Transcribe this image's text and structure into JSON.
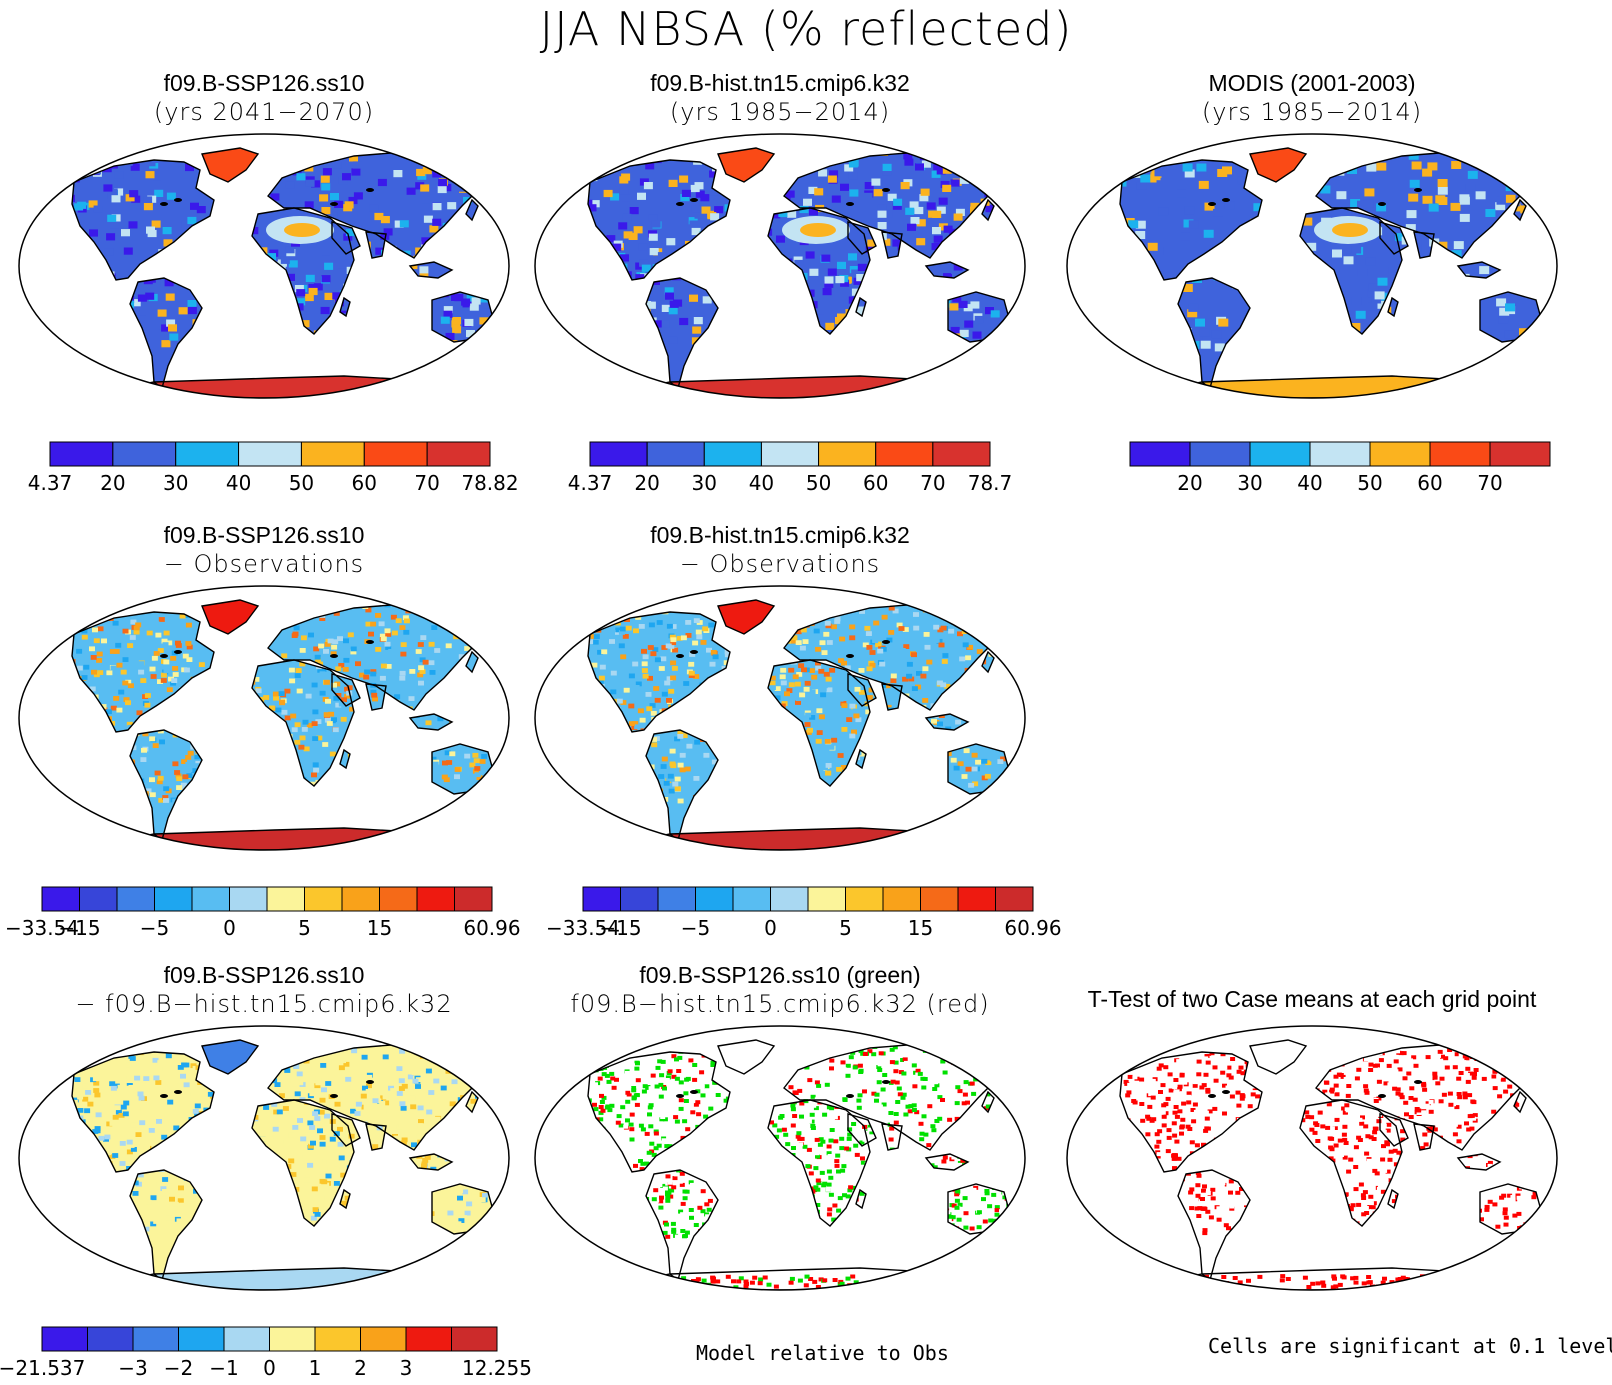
{
  "title": "JJA NBSA (% reflected)",
  "colors": {
    "abs": [
      "#3a19ea",
      "#3f63dc",
      "#1cb2ee",
      "#c3e4f3",
      "#fbb31f",
      "#fa4a16",
      "#d8322e"
    ],
    "diff10": [
      "#3a19ea",
      "#3745d9",
      "#3f80e6",
      "#1ea6f0",
      "#58bdf2",
      "#a9d8f2",
      "#fbf49a",
      "#fbc62c",
      "#f9a21a",
      "#f56a18",
      "#ee1a10",
      "#cc2b2b"
    ],
    "diff_ss": [
      "#3a19ea",
      "#3745d9",
      "#3f80e6",
      "#1ea6f0",
      "#a9d8f2",
      "#fbf49a",
      "#fbc62c",
      "#f9a21a",
      "#ee1a10",
      "#cc2b2b"
    ],
    "sig_green": "#00e000",
    "sig_red": "#ff0000"
  },
  "panels": [
    {
      "id": "p1",
      "title": "f09.B-SSP126.ss10",
      "subtitle": "(yrs 2041−2070)",
      "scheme": "abs-model",
      "icecap": "#d8322e",
      "greenland": "#fa4a16"
    },
    {
      "id": "p2",
      "title": "f09.B-hist.tn15.cmip6.k32",
      "subtitle": "(yrs 1985−2014)",
      "scheme": "abs-model",
      "icecap": "#d8322e",
      "greenland": "#fa4a16"
    },
    {
      "id": "p3",
      "title": "MODIS (2001-2003)",
      "subtitle": "(yrs 1985−2014)",
      "scheme": "abs-obs",
      "icecap": "#fbb31f",
      "greenland": "#fa4a16"
    },
    {
      "id": "p4",
      "title": "f09.B-SSP126.ss10",
      "subtitle": "− Observations",
      "scheme": "diff-obs",
      "icecap": "#cc2b2b",
      "greenland": "#ee1a10"
    },
    {
      "id": "p5",
      "title": "f09.B-hist.tn15.cmip6.k32",
      "subtitle": "− Observations",
      "scheme": "diff-obs",
      "icecap": "#cc2b2b",
      "greenland": "#ee1a10"
    },
    {
      "id": "p6",
      "title": "f09.B-SSP126.ss10",
      "subtitle": "− f09.B−hist.tn15.cmip6.k32",
      "scheme": "diff-model",
      "icecap": "#a9d8f2",
      "greenland": "#3f80e6"
    },
    {
      "id": "p7",
      "title": "f09.B-SSP126.ss10 (green)",
      "subtitle": "f09.B−hist.tn15.cmip6.k32 (red)",
      "scheme": "rg",
      "icecap": "#ffffff",
      "greenland": "#ffffff"
    },
    {
      "id": "p8",
      "title": "T-Test of two Case means at each grid point",
      "subtitle": "",
      "scheme": "ttest",
      "icecap": "#ffffff",
      "greenland": "#ffffff"
    }
  ],
  "colorbars": [
    {
      "id": "cb1",
      "scheme": "abs",
      "labels": [
        "4.37",
        "20",
        "30",
        "40",
        "50",
        "60",
        "70",
        "78.82"
      ]
    },
    {
      "id": "cb2",
      "scheme": "abs",
      "labels": [
        "4.37",
        "20",
        "30",
        "40",
        "50",
        "60",
        "70",
        "78.7"
      ]
    },
    {
      "id": "cb3",
      "scheme": "abs",
      "labels": [
        "",
        "20",
        "30",
        "40",
        "50",
        "60",
        "70",
        ""
      ]
    },
    {
      "id": "cb4",
      "scheme": "diff10",
      "labels": [
        "−33.54",
        "−15",
        "",
        "−5",
        "",
        "0",
        "",
        "5",
        "",
        "15",
        "",
        "",
        "60.96"
      ]
    },
    {
      "id": "cb5",
      "scheme": "diff10",
      "labels": [
        "−33.54",
        "−15",
        "",
        "−5",
        "",
        "0",
        "",
        "5",
        "",
        "15",
        "",
        "",
        "60.96"
      ]
    },
    {
      "id": "cb6",
      "scheme": "diff_ss",
      "labels": [
        "−21.537",
        "",
        "−3",
        "−2",
        "−1",
        "0",
        "1",
        "2",
        "3",
        "",
        "12.255"
      ]
    }
  ],
  "notes": {
    "model_relative": "Model relative to Obs",
    "significance": "Cells are significant at 0.1 level"
  }
}
